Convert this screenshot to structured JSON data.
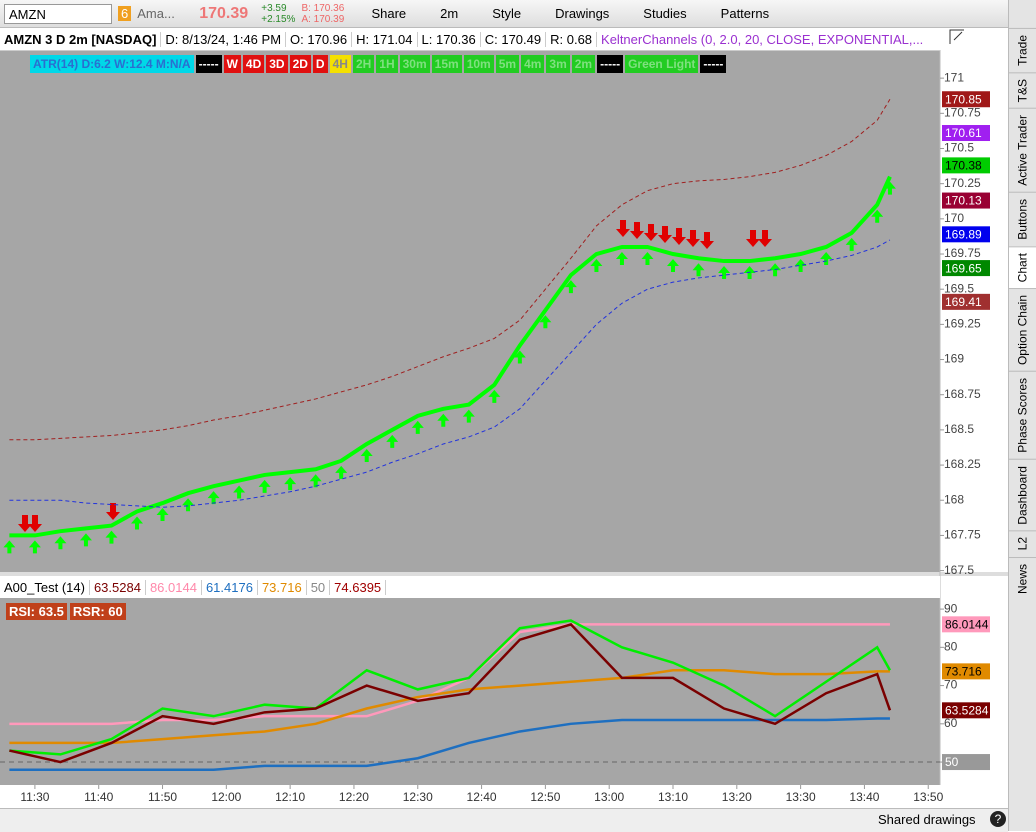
{
  "toolbar": {
    "symbol": "AMZN",
    "link_group": "6",
    "name": "Ama...",
    "last": "170.39",
    "change": "+3.59",
    "change_pct": "+2.15%",
    "bid": "B: 170.36",
    "ask": "A: 170.39",
    "buttons": [
      "Share",
      "2m",
      "Style",
      "Drawings",
      "Studies",
      "Patterns"
    ]
  },
  "info_bar": [
    "AMZN 3 D 2m [NASDAQ]",
    "D: 8/13/24, 1:46 PM",
    "O: 170.96",
    "H: 171.04",
    "L: 170.36",
    "C: 170.49",
    "R: 0.68",
    "KeltnerChannels (0, 2.0, 20, CLOSE, EXPONENTIAL,..."
  ],
  "overlay_labels": [
    {
      "text": "ATR(14) D:6.2 W:12.4 M:N/A",
      "bg": "#00d8e8",
      "fg": "#2a6fd0"
    },
    {
      "text": "-----",
      "bg": "#000",
      "fg": "#fff"
    },
    {
      "text": "W",
      "bg": "#e01010",
      "fg": "#fff"
    },
    {
      "text": "4D",
      "bg": "#e01010",
      "fg": "#fff"
    },
    {
      "text": "3D",
      "bg": "#e01010",
      "fg": "#fff"
    },
    {
      "text": "2D",
      "bg": "#e01010",
      "fg": "#fff"
    },
    {
      "text": "D",
      "bg": "#e01010",
      "fg": "#fff"
    },
    {
      "text": "4H",
      "bg": "#f4e000",
      "fg": "#888"
    },
    {
      "text": "2H",
      "bg": "#22cc22",
      "fg": "#7fe07f"
    },
    {
      "text": "1H",
      "bg": "#22cc22",
      "fg": "#7fe07f"
    },
    {
      "text": "30m",
      "bg": "#22cc22",
      "fg": "#7fe07f"
    },
    {
      "text": "15m",
      "bg": "#22cc22",
      "fg": "#7fe07f"
    },
    {
      "text": "10m",
      "bg": "#22cc22",
      "fg": "#7fe07f"
    },
    {
      "text": "5m",
      "bg": "#22cc22",
      "fg": "#7fe07f"
    },
    {
      "text": "4m",
      "bg": "#22cc22",
      "fg": "#7fe07f"
    },
    {
      "text": "3m",
      "bg": "#22cc22",
      "fg": "#7fe07f"
    },
    {
      "text": "2m",
      "bg": "#22cc22",
      "fg": "#7fe07f"
    },
    {
      "text": "-----",
      "bg": "#000",
      "fg": "#fff"
    },
    {
      "text": "Green Light",
      "bg": "#22cc22",
      "fg": "#7fe07f"
    },
    {
      "text": "-----",
      "bg": "#000",
      "fg": "#fff"
    }
  ],
  "price_chart": {
    "type": "line",
    "xlim": [
      "11:25",
      "13:52"
    ],
    "ylim": [
      167.49,
      171.2
    ],
    "yticks": [
      171,
      170.75,
      170.5,
      170.25,
      170,
      169.75,
      169.5,
      169.25,
      169,
      168.75,
      168.5,
      168.25,
      168,
      167.75,
      167.5
    ],
    "x": [
      "11:26",
      "11:30",
      "11:34",
      "11:38",
      "11:42",
      "11:46",
      "11:50",
      "11:54",
      "11:58",
      "12:02",
      "12:06",
      "12:10",
      "12:14",
      "12:18",
      "12:22",
      "12:26",
      "12:30",
      "12:34",
      "12:38",
      "12:42",
      "12:46",
      "12:50",
      "12:54",
      "12:58",
      "13:02",
      "13:06",
      "13:10",
      "13:14",
      "13:18",
      "13:22",
      "13:26",
      "13:30",
      "13:34",
      "13:38",
      "13:42",
      "13:44"
    ],
    "series": [
      {
        "color": "#00ff00",
        "width": 4,
        "values": [
          167.75,
          167.75,
          167.78,
          167.8,
          167.82,
          167.92,
          167.98,
          168.05,
          168.1,
          168.14,
          168.18,
          168.2,
          168.22,
          168.28,
          168.4,
          168.5,
          168.6,
          168.65,
          168.68,
          168.82,
          169.1,
          169.35,
          169.6,
          169.75,
          169.8,
          169.8,
          169.75,
          169.72,
          169.7,
          169.7,
          169.72,
          169.75,
          169.8,
          169.9,
          170.1,
          170.3
        ]
      },
      {
        "color": "#2233dd",
        "width": 1,
        "dash": true,
        "values": [
          168.0,
          168.0,
          168.0,
          167.98,
          167.97,
          167.96,
          167.95,
          167.96,
          167.98,
          168.0,
          168.03,
          168.06,
          168.1,
          168.15,
          168.2,
          168.27,
          168.33,
          168.4,
          168.45,
          168.52,
          168.65,
          168.85,
          169.05,
          169.25,
          169.4,
          169.5,
          169.55,
          169.58,
          169.6,
          169.62,
          169.64,
          169.67,
          169.7,
          169.74,
          169.8,
          169.85
        ]
      },
      {
        "color": "#a02020",
        "width": 1,
        "dash": true,
        "values": [
          168.43,
          168.43,
          168.44,
          168.45,
          168.46,
          168.48,
          168.5,
          168.53,
          168.57,
          168.6,
          168.64,
          168.68,
          168.72,
          168.77,
          168.82,
          168.88,
          168.95,
          169.02,
          169.08,
          169.15,
          169.28,
          169.5,
          169.72,
          169.95,
          170.1,
          170.2,
          170.25,
          170.27,
          170.28,
          170.3,
          170.33,
          170.38,
          170.45,
          170.55,
          170.7,
          170.85
        ]
      }
    ],
    "price_labels": [
      {
        "value": 170.85,
        "color": "#a01818"
      },
      {
        "value": 170.61,
        "color": "#a020f0"
      },
      {
        "value": 170.38,
        "color": "#00cc00"
      },
      {
        "value": 170.13,
        "color": "#990033"
      },
      {
        "value": 169.89,
        "color": "#0000ee"
      },
      {
        "value": 169.65,
        "color": "#008800"
      },
      {
        "value": 169.41,
        "color": "#a03030"
      }
    ]
  },
  "lower_chart": {
    "type": "line",
    "title": "A00_Test (14)",
    "legend": [
      {
        "text": "63.5284",
        "color": "#7a0000"
      },
      {
        "text": "86.0144",
        "color": "#ff88aa"
      },
      {
        "text": "61.4176",
        "color": "#1e6fc0"
      },
      {
        "text": "73.716",
        "color": "#e08a00"
      },
      {
        "text": "50",
        "color": "#888"
      },
      {
        "text": "74.6395",
        "color": "#a00000"
      }
    ],
    "badges": [
      "RSI: 63.5",
      "RSR: 60"
    ],
    "xlim": [
      "11:25",
      "13:52"
    ],
    "ylim": [
      44,
      92.9
    ],
    "yticks": [
      90,
      80,
      70,
      60,
      50
    ],
    "x": [
      "11:26",
      "11:34",
      "11:42",
      "11:50",
      "11:58",
      "12:06",
      "12:14",
      "12:22",
      "12:30",
      "12:38",
      "12:46",
      "12:54",
      "13:02",
      "13:10",
      "13:18",
      "13:26",
      "13:34",
      "13:42",
      "13:44"
    ],
    "series": [
      {
        "color": "#ff99bb",
        "values": [
          60,
          60,
          60,
          61,
          61,
          62,
          62,
          62,
          66,
          72,
          84,
          86,
          86,
          86,
          86,
          86,
          86,
          86,
          86
        ]
      },
      {
        "color": "#e08a00",
        "values": [
          55,
          55,
          55,
          56,
          57,
          58,
          60,
          64,
          67,
          69,
          70,
          71,
          72,
          74,
          74,
          73,
          73,
          73.7,
          73.7
        ]
      },
      {
        "color": "#1e6fc0",
        "values": [
          48,
          48,
          48,
          48,
          48,
          49,
          49,
          49,
          51,
          55,
          58,
          60,
          61,
          61,
          61,
          61,
          61,
          61.4,
          61.4
        ]
      },
      {
        "color": "#00ee00",
        "values": [
          53,
          52,
          56,
          64,
          62,
          65,
          64,
          74,
          69,
          72,
          85,
          87,
          80,
          76,
          70,
          62,
          71,
          80,
          74
        ]
      },
      {
        "color": "#7a0000",
        "values": [
          53,
          50,
          55,
          62,
          60,
          63,
          64,
          70,
          66,
          68,
          82,
          86,
          72,
          72,
          64,
          60,
          68,
          73,
          63.5284
        ]
      }
    ],
    "ref_line": 50,
    "right_labels": [
      {
        "value": 86.0144,
        "color": "#ff99bb"
      },
      {
        "value": 73.716,
        "color": "#e08a00"
      },
      {
        "value": 63.5284,
        "color": "#7a0000"
      },
      {
        "value": 50,
        "color": "#999"
      }
    ],
    "xticks": [
      "11:30",
      "11:40",
      "11:50",
      "12:00",
      "12:10",
      "12:20",
      "12:30",
      "12:40",
      "12:50",
      "13:00",
      "13:10",
      "13:20",
      "13:30",
      "13:40",
      "13:50"
    ]
  },
  "bottom_bar": {
    "text": "Shared drawings"
  },
  "side_tabs": [
    "Trade",
    "T&S",
    "Active Trader",
    "Buttons",
    "Chart",
    "Option Chain",
    "Phase Scores",
    "Dashboard",
    "L2",
    "News"
  ]
}
